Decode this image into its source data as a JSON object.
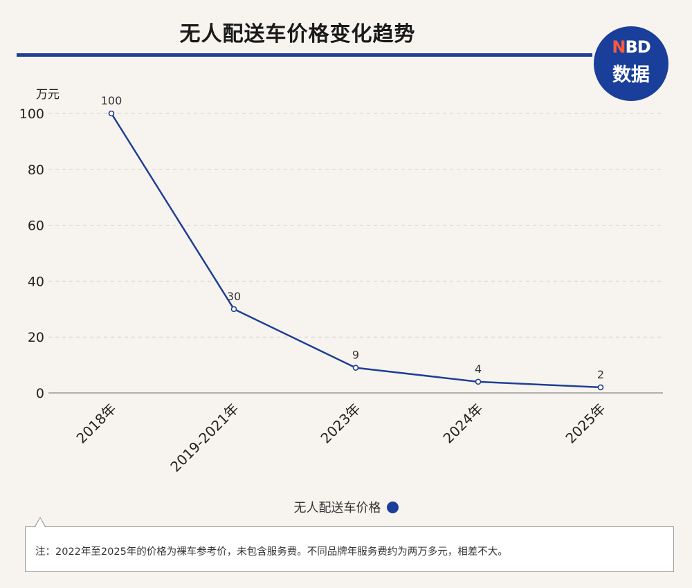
{
  "title": "无人配送车价格变化趋势",
  "logo": {
    "line1_accent": "N",
    "line1_rest": "BD",
    "line2": "数据"
  },
  "unit_label": "万元",
  "legend": {
    "label": "无人配送车价格"
  },
  "note": "注：2022年至2025年的价格为裸车参考价，未包含服务费。不同品牌年服务费约为两万多元，相差不大。",
  "colors": {
    "series": "#1f3f94",
    "brand": "#1a3f9a",
    "accent": "#ff5a3c",
    "grid": "#cfcfcf"
  },
  "chart_data": {
    "type": "line",
    "title": "无人配送车价格变化趋势",
    "ylabel": "万元",
    "xlabel": "",
    "categories": [
      "2018年",
      "2019-2021年",
      "2023年",
      "2024年",
      "2025年"
    ],
    "series": [
      {
        "name": "无人配送车价格",
        "values": [
          100,
          30,
          9,
          4,
          2
        ]
      }
    ],
    "ylim": [
      0,
      100
    ],
    "yticks": [
      0,
      20,
      40,
      60,
      80,
      100
    ],
    "grid": "horizontal-dashed",
    "data_labels": [
      "100",
      "30",
      "9",
      "4",
      "2"
    ],
    "legend_position": "bottom-center"
  }
}
